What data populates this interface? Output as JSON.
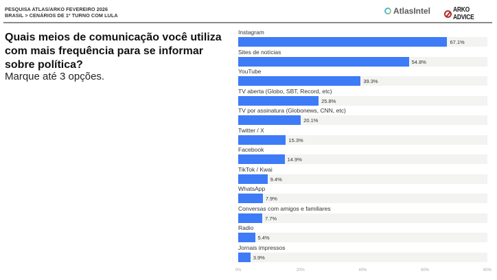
{
  "header": {
    "line1": "PESQUISA ATLAS/ARKO FEVEREIRO 2026",
    "line2": "BRASIL > CENÁRIOS DE 1º TURNO COM LULA",
    "logo_left": "AtlasIntel",
    "logo_right": "ARKO ADVICE"
  },
  "question": {
    "title": "Quais meios de comunicação você utiliza com mais frequência para se informar sobre política?",
    "subtitle": "Marque até 3 opções."
  },
  "colors": {
    "bar": "#3d7bf7",
    "track": "#f3f3f1"
  },
  "chart_data": {
    "type": "bar",
    "orientation": "horizontal",
    "title": "Quais meios de comunicação você utiliza com mais frequência para se informar sobre política?",
    "subtitle": "Marque até 3 opções.",
    "categories": [
      "Instagram",
      "Sites de notícias",
      "YouTube",
      "TV aberta (Globo, SBT, Record, etc)",
      "TV por assinatura (Globonews, CNN, etc)",
      "Twitter / X",
      "Facebook",
      "TikTok / Kwai",
      "WhatsApp",
      "Conversas com amigos e familiares",
      "Radio",
      "Jornais impressos"
    ],
    "values": [
      67.1,
      54.8,
      39.3,
      25.8,
      20.1,
      15.3,
      14.9,
      9.4,
      7.9,
      7.7,
      5.4,
      3.9
    ],
    "labels": [
      "67.1%",
      "54.8%",
      "39.3%",
      "25.8%",
      "20.1%",
      "15.3%",
      "14.9%",
      "9.4%",
      "7.9%",
      "7.7%",
      "5.4%",
      "3.9%"
    ],
    "xlabel": "",
    "ylabel": "",
    "xlim": [
      0,
      80
    ],
    "xticks": [
      "0%",
      "20%",
      "40%",
      "60%",
      "80%"
    ],
    "grid": false,
    "legend": null
  }
}
